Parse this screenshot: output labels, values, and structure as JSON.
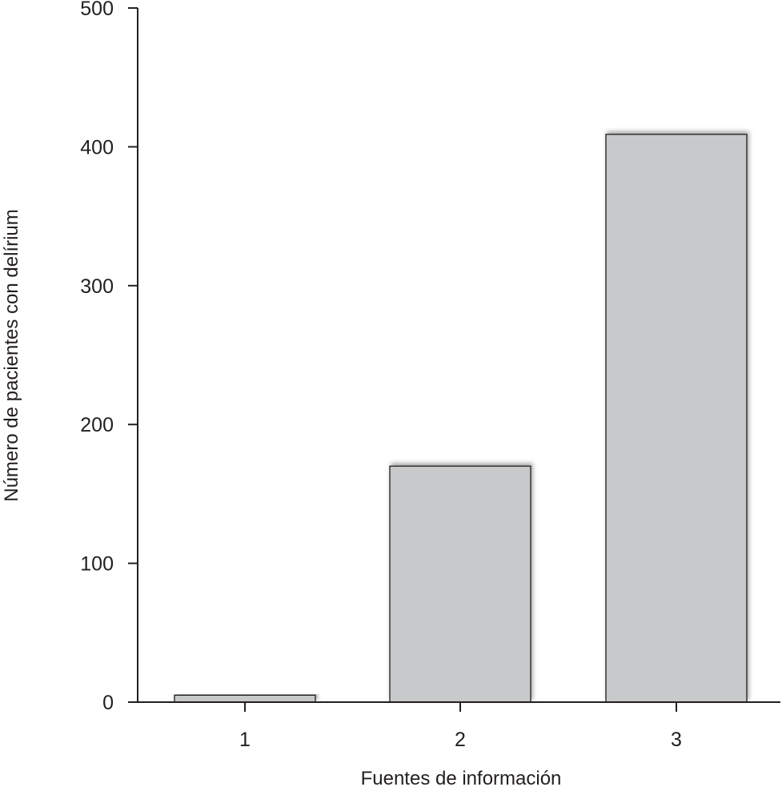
{
  "chart_data": {
    "type": "bar",
    "categories": [
      "1",
      "2",
      "3"
    ],
    "values": [
      5,
      170,
      409
    ],
    "title": "",
    "xlabel": "Fuentes de información",
    "ylabel": "Número de pacientes con delírium",
    "ylim": [
      0,
      500
    ],
    "yticks": [
      0,
      100,
      200,
      300,
      400,
      500
    ],
    "grid": false,
    "bar_color": "#c8c9cb",
    "edge_color": "#231f20"
  }
}
